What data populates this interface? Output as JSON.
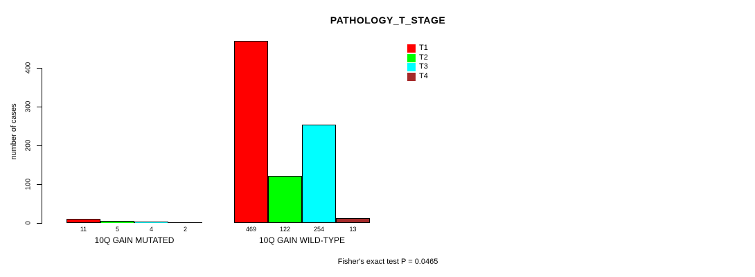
{
  "chart_data": {
    "type": "bar",
    "title": "PATHOLOGY_T_STAGE",
    "ylabel": "number of cases",
    "xlabel": "",
    "categories": [
      "10Q GAIN MUTATED",
      "10Q GAIN WILD-TYPE"
    ],
    "series": [
      {
        "name": "T1",
        "color": "#ff0000",
        "values": [
          11,
          469
        ]
      },
      {
        "name": "T2",
        "color": "#00ff00",
        "values": [
          5,
          122
        ]
      },
      {
        "name": "T3",
        "color": "#00ffff",
        "values": [
          4,
          254
        ]
      },
      {
        "name": "T4",
        "color": "#a52a2a",
        "values": [
          2,
          13
        ]
      }
    ],
    "yticks": [
      0,
      100,
      200,
      300,
      400
    ],
    "ylim": [
      0,
      400
    ],
    "grid": false,
    "legend_position": "top-right",
    "annotation": "Fisher's exact test P = 0.0465"
  }
}
